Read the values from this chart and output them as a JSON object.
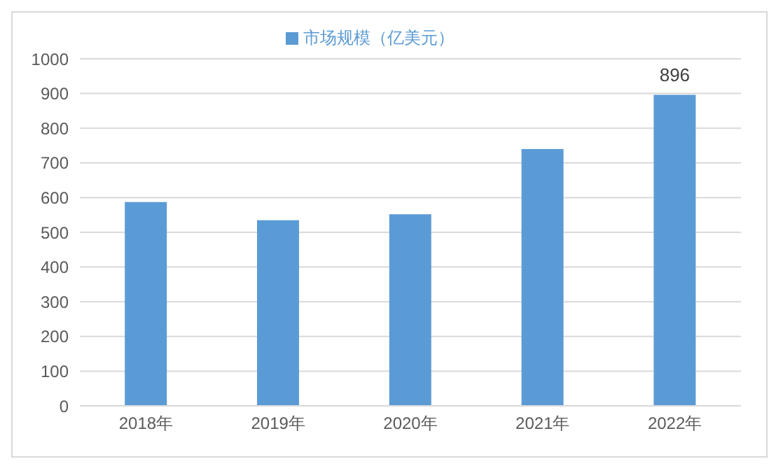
{
  "chart_data": {
    "type": "bar",
    "categories": [
      "2018年",
      "2019年",
      "2020年",
      "2021年",
      "2022年"
    ],
    "series": [
      {
        "name": "市场规模（亿美元）",
        "color": "#5b9bd5",
        "values": [
          587,
          535,
          552,
          740,
          896
        ],
        "value_labels": [
          null,
          null,
          null,
          null,
          "896"
        ]
      }
    ],
    "ylim": [
      0,
      1000
    ],
    "yticks": [
      0,
      100,
      200,
      300,
      400,
      500,
      600,
      700,
      800,
      900,
      1000
    ],
    "grid": "y",
    "legend": "top"
  }
}
